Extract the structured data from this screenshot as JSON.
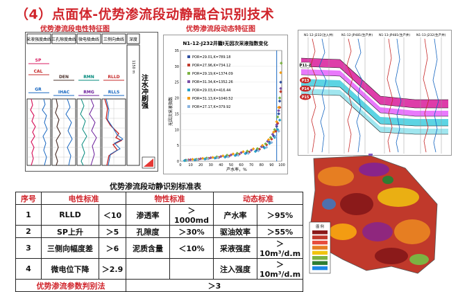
{
  "title": "（4）点面体-优势渗流段动静融合识别技术",
  "captions": {
    "log": "优势渗流段电性特征图",
    "dynamic": "优势渗流段动态特征图"
  },
  "log_panel": {
    "headers": [
      "采液强度曲线",
      "三孔隙度曲线",
      "微电极曲线",
      "三侧向曲线",
      "深度"
    ],
    "curves": [
      "SP",
      "CAL",
      "GR",
      "DEN",
      "IHAC",
      "RMN",
      "RMG",
      "RLLD",
      "RLLS"
    ],
    "side_text": "注水冲刷强",
    "depth_label": "1150 m"
  },
  "chart": {
    "title": "N1-12-J232井籠Ⅰ无因次采液指数变化",
    "ylabel": "无因次采液指数",
    "xlabel": "产水率，%",
    "colors": [
      "#2f4f9f",
      "#c0392b",
      "#7cb342",
      "#7b4fa8",
      "#29a3c9",
      "#f39c12",
      "#8ab4e0"
    ]
  },
  "chart_data": {
    "type": "scatter",
    "xlim": [
      0,
      100
    ],
    "ylim": [
      0,
      35
    ],
    "xticks": [
      "0",
      "10",
      "20",
      "30",
      "40",
      "50",
      "60",
      "70",
      "80",
      "90",
      "100"
    ],
    "yticks": [
      "0",
      "5",
      "10",
      "15",
      "20",
      "25",
      "30",
      "35"
    ],
    "series": [
      {
        "name": "POR=29.01,K=789.18",
        "x": [
          5,
          15,
          25,
          35,
          45,
          55,
          65,
          75,
          82,
          88,
          92,
          95,
          97,
          98,
          99
        ],
        "y": [
          0.3,
          0.5,
          0.8,
          1.1,
          1.5,
          2.0,
          2.6,
          3.4,
          4.5,
          6,
          8,
          11,
          15,
          19,
          25
        ]
      },
      {
        "name": "POR=27.96,K=734.12",
        "x": [
          8,
          18,
          28,
          38,
          48,
          58,
          68,
          78,
          85,
          90,
          94,
          96,
          98,
          99
        ],
        "y": [
          0.4,
          0.6,
          0.9,
          1.2,
          1.6,
          2.2,
          2.9,
          3.8,
          5.2,
          7,
          9.5,
          12,
          17,
          22
        ]
      },
      {
        "name": "POR=29.19,K=1374.09",
        "x": [
          6,
          16,
          26,
          36,
          46,
          56,
          66,
          76,
          84,
          89,
          93,
          96,
          98,
          99.5
        ],
        "y": [
          0.3,
          0.6,
          1.0,
          1.4,
          1.9,
          2.5,
          3.2,
          4.0,
          5.5,
          7.5,
          10,
          14,
          20,
          31
        ]
      },
      {
        "name": "POR=31.34,K=1352.26",
        "x": [
          10,
          20,
          30,
          40,
          50,
          60,
          70,
          80,
          86,
          91,
          95,
          97,
          99
        ],
        "y": [
          0.5,
          0.8,
          1.1,
          1.5,
          2.0,
          2.7,
          3.5,
          4.6,
          6.3,
          8.5,
          11.5,
          16,
          23
        ]
      },
      {
        "name": "POR=29.03,K=416.44",
        "x": [
          4,
          14,
          24,
          34,
          44,
          54,
          64,
          74,
          83,
          88,
          93,
          96,
          98
        ],
        "y": [
          0.2,
          0.4,
          0.7,
          1.0,
          1.3,
          1.8,
          2.4,
          3.1,
          4.2,
          5.6,
          7.5,
          10,
          13
        ]
      },
      {
        "name": "POR=31.13,K=1040.52",
        "x": [
          12,
          22,
          32,
          42,
          52,
          62,
          72,
          81,
          87,
          92,
          95,
          97,
          99
        ],
        "y": [
          0.6,
          0.9,
          1.2,
          1.7,
          2.3,
          3.0,
          3.9,
          5.0,
          6.8,
          9.2,
          12.5,
          17,
          28
        ]
      },
      {
        "name": "POR=27.17,K=379.92",
        "x": [
          7,
          17,
          27,
          37,
          47,
          57,
          67,
          77,
          85,
          90,
          94,
          97
        ],
        "y": [
          0.3,
          0.5,
          0.8,
          1.1,
          1.4,
          1.9,
          2.5,
          3.3,
          4.4,
          5.9,
          7.8,
          9.5
        ]
      }
    ],
    "vline_x": 95
  },
  "profile": {
    "wells": [
      "N1-12-J232(注入井)",
      "N1-12-JP481(生产井)",
      "N1-13-JP481(生产井)",
      "N1-13-J232(生产井)"
    ],
    "zones": [
      "P11-2",
      "P13",
      "P14",
      "P15"
    ]
  },
  "map": {
    "legend_title": "图 例",
    "legend_colors": [
      "#8b1a1a",
      "#c0392b",
      "#e74c3c",
      "#e67e22",
      "#f1c40f",
      "#7cb342",
      "#2e7d32",
      "#1e88e5"
    ]
  },
  "table": {
    "title": "优势渗流段动静识别标准表",
    "headers": [
      "序号",
      "电性标准",
      "",
      "物性标准",
      "",
      "动态标准",
      ""
    ],
    "rows": [
      [
        "1",
        "RLLD",
        "＜10",
        "渗透率",
        "＞1000md",
        "产水率",
        "＞95%"
      ],
      [
        "2",
        "SP上升",
        "＞5",
        "孔隙度",
        "＞30%",
        "驱油效率",
        "＞55%"
      ],
      [
        "3",
        "三侧向幅度差",
        "＞6",
        "泥质含量",
        "＜10%",
        "采液强度",
        "＞10m³/d.m"
      ],
      [
        "4",
        "微电位下降",
        "＞2.9",
        "",
        "",
        "注入强度",
        "＞10m³/d.m"
      ]
    ],
    "footer_label": "优势渗流参数判别法",
    "footer_value": "＞3"
  },
  "arrow_color": "#7e57c2"
}
